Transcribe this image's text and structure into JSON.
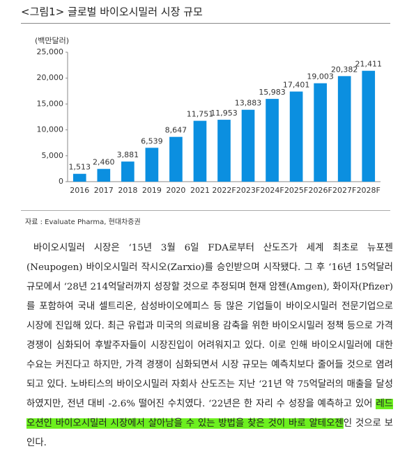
{
  "figure_title": "<그림1> 글로벌 바이오시밀러 시장 규모",
  "chart_data": {
    "type": "bar",
    "y_label": "(백만달러)",
    "categories": [
      "2016",
      "2017",
      "2018",
      "2019",
      "2020",
      "2021",
      "2022F",
      "2023F",
      "2024F",
      "2025F",
      "2026F",
      "2027F",
      "2028F"
    ],
    "values": [
      1513,
      2460,
      3881,
      6539,
      8647,
      11751,
      11953,
      13883,
      15983,
      17401,
      19003,
      20382,
      21411
    ],
    "value_labels": [
      "1,513",
      "2,460",
      "3,881",
      "6,539",
      "8,647",
      "11,751",
      "11,953",
      "13,883",
      "15,983",
      "17,401",
      "19,003",
      "20,382",
      "21,411"
    ],
    "color": "#0b8fe0",
    "ylim": [
      0,
      25000
    ],
    "yticks": [
      0,
      {
        "value": 5000,
        "label": "5,000"
      },
      {
        "value": 10000,
        "label": "10,000"
      },
      {
        "value": 15000,
        "label": "15,000"
      },
      {
        "value": 20000,
        "label": "20,000"
      },
      {
        "value": 25000,
        "label": "25,000"
      }
    ],
    "grid": false
  },
  "source": "자료 : Evaluate Pharma, 현대차증권",
  "body": {
    "before": "바이오시밀러 시장은 ‘15년 3월 6일 FDA로부터 산도즈가 세계 최초로 뉴포젠(Neupogen) 바이오시밀러 작시오(Zarxio)를 승인받으며 시작됐다. 그 후 ‘16년 15억달러 규모에서 ‘28년 214억달러까지 성장할 것으로 추정되며 현재 암젠(Amgen), 화이자(Pfizer)를 포함하여 국내 셀트리온, 삼성바이오에피스 등 많은 기업들이 바이오시밀러 전문기업으로 시장에 진입해 있다. 최근 유럽과 미국의 의료비용 감축을 위한 바이오시밀러 정책 등으로 가격 경쟁이 심화되어 후발주자들이 시장진입이 어려워지고 있다. 이로 인해 바이오시밀러에 대한 수요는 커진다고 하지만, 가격 경쟁이 심화되면서 시장 규모는 예측치보다 줄어들 것으로 염려되고 있다. 노바티스의 바이오시밀러 자회사 산도즈는 지난 ‘21년 약 75억달러의 매출을 달성하였지만, 전년 대비 -2.6% 떨어진 수치였다. ‘22년은 한 자리 수 성장을 예측하고 있어 ",
    "highlight": "레드오션인 바이오시밀러 시장에서 살아남을 수 있는 방법을 찾은 것이 바로 알테오젠",
    "after": "인 것으로 보인다."
  }
}
